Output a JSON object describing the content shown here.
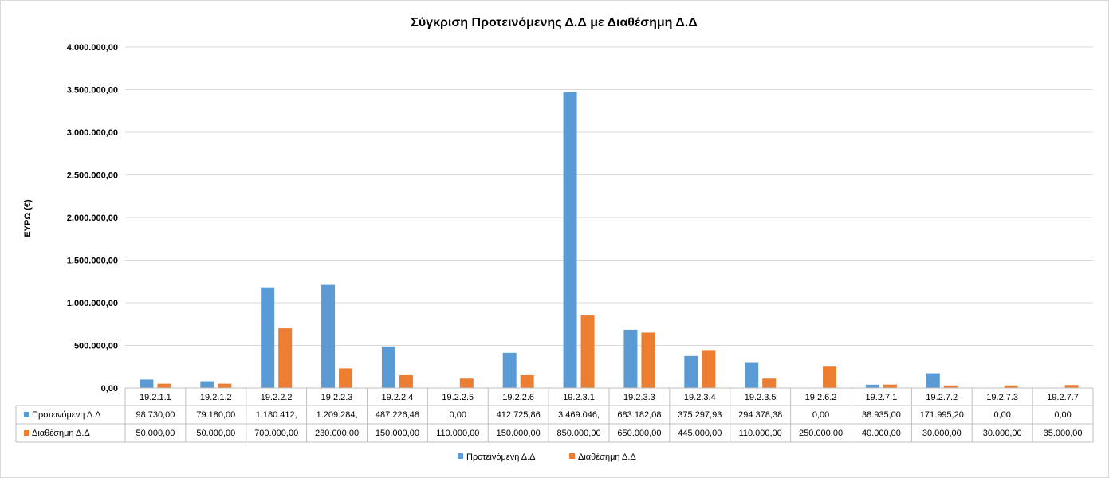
{
  "chart_data": {
    "type": "bar",
    "title": "Σύγκριση Προτεινόμενης Δ.Δ με Διαθέσημη Δ.Δ",
    "ylabel": "ΕΥΡΩ (€)",
    "xlabel": "",
    "ylim": [
      0,
      4000000
    ],
    "yticks": [
      0,
      500000,
      1000000,
      1500000,
      2000000,
      2500000,
      3000000,
      3500000,
      4000000
    ],
    "ytick_labels": [
      "0,00",
      "500.000,00",
      "1.000.000,00",
      "1.500.000,00",
      "2.000.000,00",
      "2.500.000,00",
      "3.000.000,00",
      "3.500.000,00",
      "4.000.000,00"
    ],
    "grid": true,
    "legend_position": "bottom",
    "categories": [
      "19.2.1.1",
      "19.2.1.2",
      "19.2.2.2",
      "19.2.2.3",
      "19.2.2.4",
      "19.2.2.5",
      "19.2.2.6",
      "19.2.3.1",
      "19.2.3.3",
      "19.2.3.4",
      "19.2.3.5",
      "19.2.6.2",
      "19.2.7.1",
      "19.2.7.2",
      "19.2.7.3",
      "19.2.7.7"
    ],
    "series": [
      {
        "name": "Προτεινόμενη Δ.Δ",
        "color": "#5B9BD5",
        "values": [
          98730,
          79180,
          1180412,
          1209284,
          487226.48,
          0,
          412725.86,
          3469046,
          683182.08,
          375297.93,
          294378.38,
          0,
          38935,
          171995.2,
          0,
          0
        ],
        "table_labels": [
          "98.730,00",
          "79.180,00",
          "1.180.412,",
          "1.209.284,",
          "487.226,48",
          "0,00",
          "412.725,86",
          "3.469.046,",
          "683.182,08",
          "375.297,93",
          "294.378,38",
          "0,00",
          "38.935,00",
          "171.995,20",
          "0,00",
          "0,00"
        ]
      },
      {
        "name": "Διαθέσημη Δ.Δ",
        "color": "#ED7D31",
        "values": [
          50000,
          50000,
          700000,
          230000,
          150000,
          110000,
          150000,
          850000,
          650000,
          445000,
          110000,
          250000,
          40000,
          30000,
          30000,
          35000
        ],
        "table_labels": [
          "50.000,00",
          "50.000,00",
          "700.000,00",
          "230.000,00",
          "150.000,00",
          "110.000,00",
          "150.000,00",
          "850.000,00",
          "650.000,00",
          "445.000,00",
          "110.000,00",
          "250.000,00",
          "40.000,00",
          "30.000,00",
          "30.000,00",
          "35.000,00"
        ]
      }
    ]
  }
}
